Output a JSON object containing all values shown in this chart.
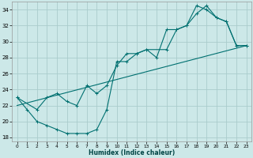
{
  "bg_color": "#cce8e8",
  "grid_color": "#aacccc",
  "line_color": "#007070",
  "xlabel": "Humidex (Indice chaleur)",
  "xlim": [
    -0.5,
    23.5
  ],
  "ylim": [
    17.5,
    35.0
  ],
  "xticks": [
    0,
    1,
    2,
    3,
    4,
    5,
    6,
    7,
    8,
    9,
    10,
    11,
    12,
    13,
    14,
    15,
    16,
    17,
    18,
    19,
    20,
    21,
    22,
    23
  ],
  "yticks": [
    18,
    20,
    22,
    24,
    26,
    28,
    30,
    32,
    34
  ],
  "line1_x": [
    0,
    1,
    2,
    3,
    4,
    5,
    6,
    7,
    8,
    9,
    10,
    11,
    12,
    13,
    14,
    15,
    16,
    17,
    18,
    19,
    20,
    21,
    22,
    23
  ],
  "line1_y": [
    23.0,
    21.5,
    20.0,
    19.5,
    19.0,
    18.5,
    18.5,
    18.5,
    19.0,
    21.5,
    27.5,
    27.5,
    28.5,
    29.0,
    28.0,
    31.5,
    31.5,
    32.0,
    33.5,
    34.5,
    33.0,
    32.5,
    29.5,
    29.5
  ],
  "line2_x": [
    0,
    2,
    3,
    4,
    5,
    6,
    7,
    8,
    9,
    10,
    11,
    12,
    13,
    15,
    16,
    17,
    18,
    19,
    20,
    21,
    22,
    23
  ],
  "line2_y": [
    23.0,
    21.5,
    23.0,
    23.5,
    22.5,
    22.0,
    24.5,
    23.5,
    24.5,
    27.0,
    28.5,
    28.5,
    29.0,
    29.0,
    31.5,
    32.0,
    34.5,
    34.0,
    33.0,
    32.5,
    29.5,
    29.5
  ],
  "line3_x": [
    0,
    23
  ],
  "line3_y": [
    22.0,
    29.5
  ]
}
